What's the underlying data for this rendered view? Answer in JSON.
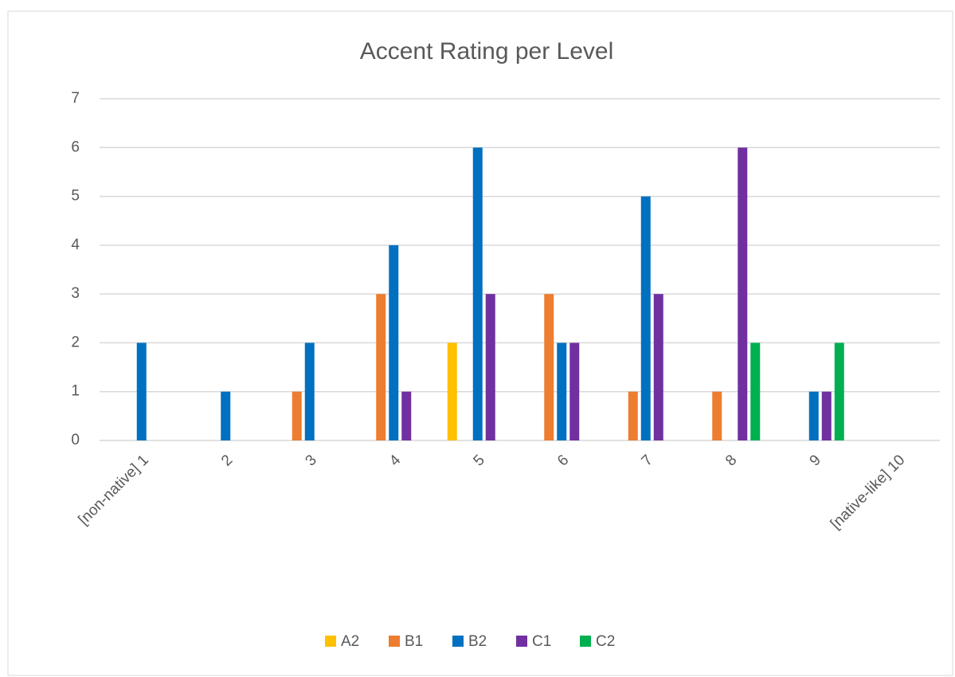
{
  "chart_data": {
    "type": "bar",
    "title": "Accent Rating per Level",
    "categories": [
      "[non-native] 1",
      "2",
      "3",
      "4",
      "5",
      "6",
      "7",
      "8",
      "9",
      "[native-like] 10"
    ],
    "series": [
      {
        "name": "A2",
        "color": "#ffc000",
        "values": [
          0,
          0,
          0,
          0,
          2,
          0,
          0,
          0,
          0,
          0
        ]
      },
      {
        "name": "B1",
        "color": "#ed7d31",
        "values": [
          0,
          0,
          1,
          3,
          0,
          3,
          1,
          1,
          0,
          0
        ]
      },
      {
        "name": "B2",
        "color": "#0070c0",
        "values": [
          2,
          1,
          2,
          4,
          6,
          2,
          5,
          0,
          1,
          0
        ]
      },
      {
        "name": "C1",
        "color": "#7030a0",
        "values": [
          0,
          0,
          0,
          1,
          3,
          2,
          3,
          6,
          1,
          0
        ]
      },
      {
        "name": "C2",
        "color": "#00b050",
        "values": [
          0,
          0,
          0,
          0,
          0,
          0,
          0,
          2,
          2,
          0
        ]
      }
    ],
    "ylim": [
      0,
      7
    ],
    "yticks": [
      0,
      1,
      2,
      3,
      4,
      5,
      6,
      7
    ],
    "grid": true,
    "legend": "bottom"
  }
}
